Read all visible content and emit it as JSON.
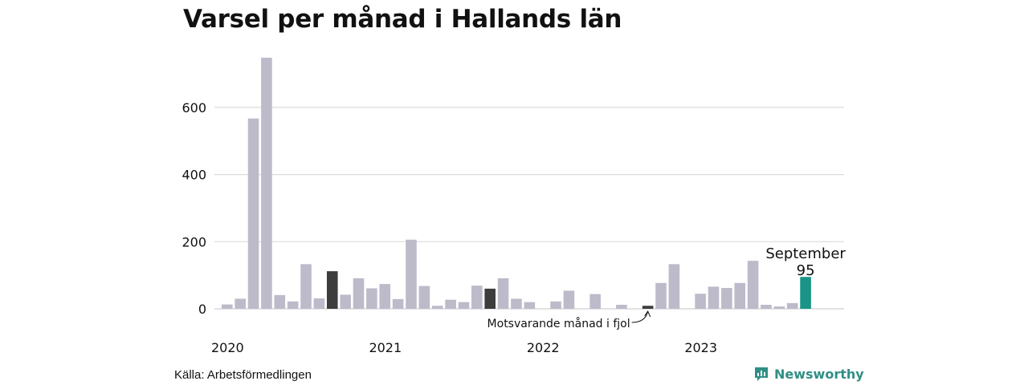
{
  "header": {
    "title": "Varsel per månad i Hallands län"
  },
  "footer": {
    "source": "Källa: Arbetsförmedlingen",
    "brand": "Newsworthy",
    "brand_icon": "newsworthy-logo-icon"
  },
  "colors": {
    "default": "#bdbbca",
    "comparison": "#3d3d3d",
    "highlight": "#1a9487",
    "brand": "#2f8f85"
  },
  "chart_data": {
    "type": "bar",
    "title": "Varsel per månad i Hallands län",
    "xlabel": "",
    "ylabel": "",
    "ylim": [
      0,
      760
    ],
    "yticks": [
      0,
      200,
      400,
      600
    ],
    "grid": true,
    "year_labels": [
      {
        "label": "2020",
        "index": 0
      },
      {
        "label": "2021",
        "index": 12
      },
      {
        "label": "2022",
        "index": 24
      },
      {
        "label": "2023",
        "index": 36
      }
    ],
    "categories": [
      "2020-01",
      "2020-02",
      "2020-03",
      "2020-04",
      "2020-05",
      "2020-06",
      "2020-07",
      "2020-08",
      "2020-09",
      "2020-10",
      "2020-11",
      "2020-12",
      "2021-01",
      "2021-02",
      "2021-03",
      "2021-04",
      "2021-05",
      "2021-06",
      "2021-07",
      "2021-08",
      "2021-09",
      "2021-10",
      "2021-11",
      "2021-12",
      "2022-01",
      "2022-02",
      "2022-03",
      "2022-04",
      "2022-05",
      "2022-06",
      "2022-07",
      "2022-08",
      "2022-09",
      "2022-10",
      "2022-11",
      "2022-12",
      "2023-01",
      "2023-02",
      "2023-03",
      "2023-04",
      "2023-05",
      "2023-06",
      "2023-07",
      "2023-08",
      "2023-09"
    ],
    "values": [
      13,
      30,
      567,
      748,
      41,
      22,
      133,
      31,
      112,
      42,
      91,
      61,
      74,
      29,
      206,
      68,
      9,
      27,
      20,
      69,
      60,
      91,
      30,
      20,
      0,
      22,
      54,
      0,
      44,
      0,
      12,
      0,
      9,
      77,
      133,
      0,
      45,
      66,
      62,
      77,
      143,
      12,
      7,
      17,
      95
    ],
    "highlight_index": 44,
    "comparison_indices": [
      8,
      20,
      32
    ],
    "annotations": {
      "highlight_month": "September",
      "highlight_value": "95",
      "comparison_note": "Motsvarande månad i fjol"
    }
  }
}
